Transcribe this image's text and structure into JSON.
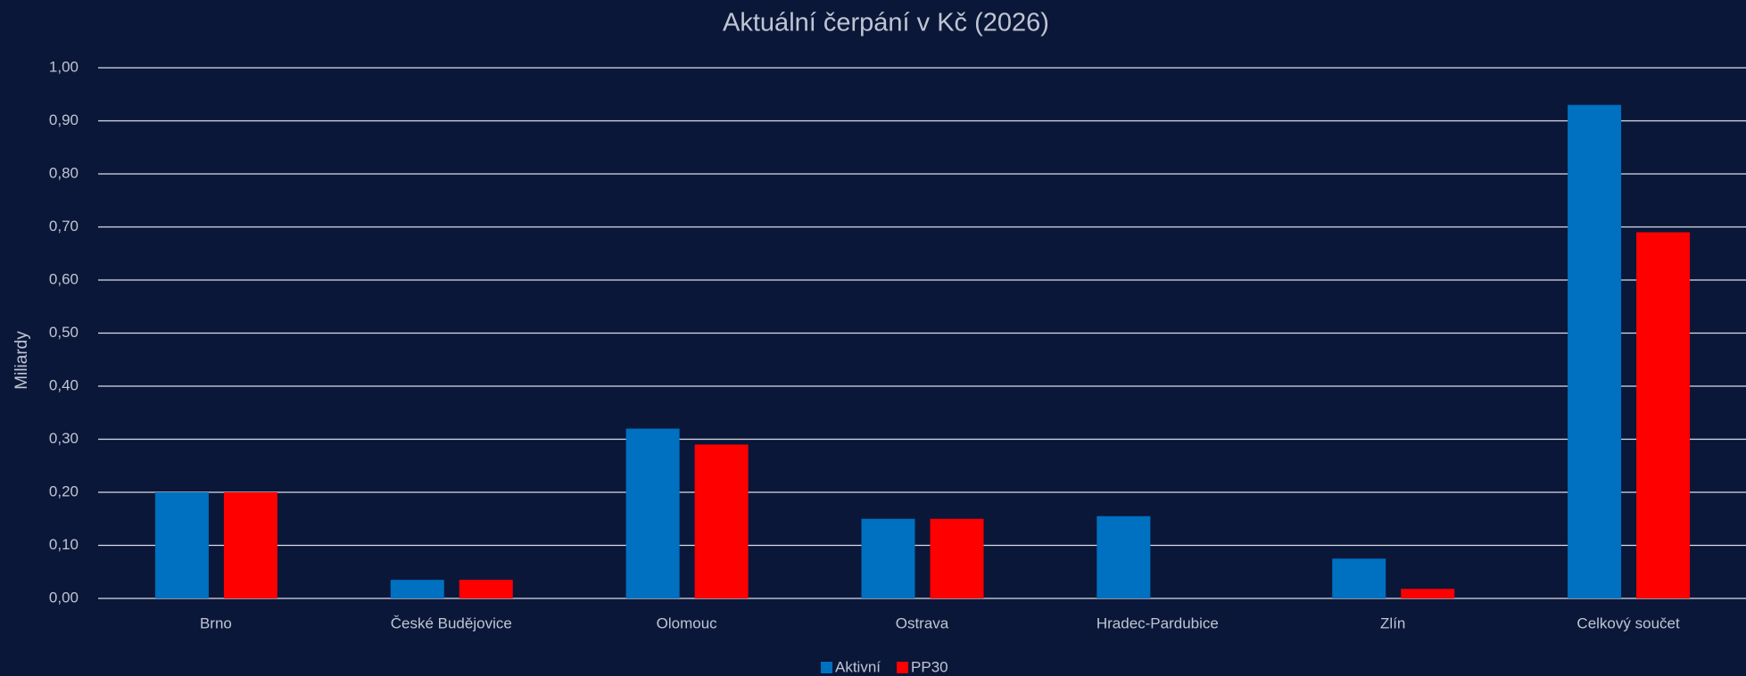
{
  "chart_data": {
    "type": "bar",
    "title": "Aktuální čerpání v Kč (2026)",
    "y_label": "Miliardy",
    "categories": [
      "Brno",
      "České Budějovice",
      "Olomouc",
      "Ostrava",
      "Hradec-Pardubice",
      "Zlín",
      "Celkový součet"
    ],
    "series": [
      {
        "name": "Aktivní",
        "color": "#0070c0",
        "values": [
          0.2,
          0.035,
          0.32,
          0.15,
          0.155,
          0.075,
          0.93
        ]
      },
      {
        "name": "PP30",
        "color": "#ff0000",
        "values": [
          0.2,
          0.035,
          0.29,
          0.15,
          0,
          0.018,
          0.69
        ]
      }
    ],
    "ylim": [
      0,
      1
    ],
    "yticks": [
      {
        "value": 0,
        "label": "0,00"
      },
      {
        "value": 0.1,
        "label": "0,10"
      },
      {
        "value": 0.2,
        "label": "0,20"
      },
      {
        "value": 0.3,
        "label": "0,30"
      },
      {
        "value": 0.4,
        "label": "0,40"
      },
      {
        "value": 0.5,
        "label": "0,50"
      },
      {
        "value": 0.6,
        "label": "0,60"
      },
      {
        "value": 0.7,
        "label": "0,70"
      },
      {
        "value": 0.8,
        "label": "0,80"
      },
      {
        "value": 0.9,
        "label": "0,90"
      },
      {
        "value": 1,
        "label": "1,00"
      }
    ],
    "grid": true,
    "legend": "bottom"
  }
}
